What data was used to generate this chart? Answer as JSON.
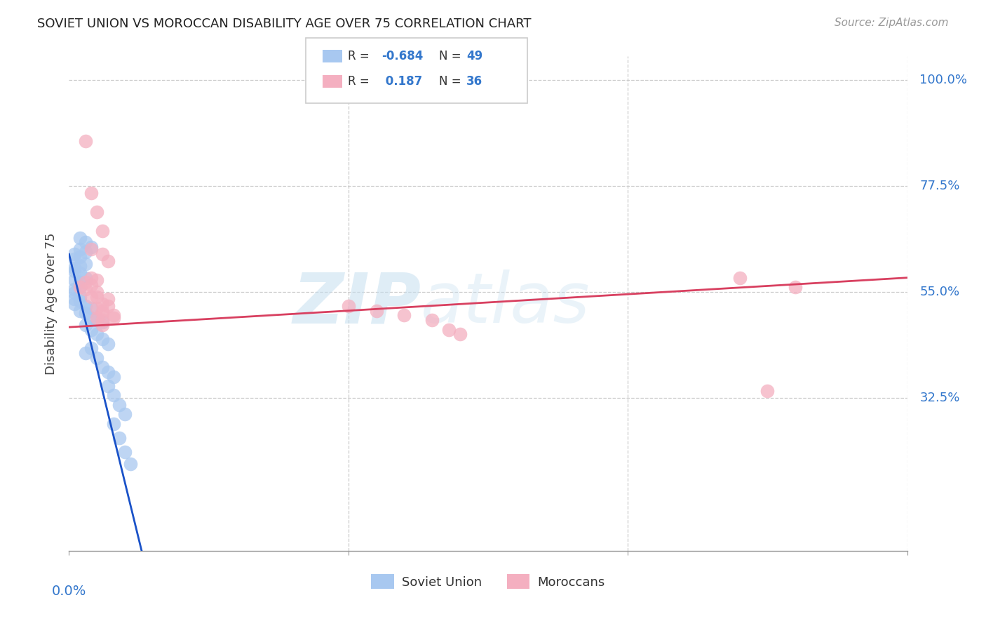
{
  "title": "SOVIET UNION VS MOROCCAN DISABILITY AGE OVER 75 CORRELATION CHART",
  "source": "Source: ZipAtlas.com",
  "ylabel": "Disability Age Over 75",
  "ytick_labels": [
    "100.0%",
    "77.5%",
    "55.0%",
    "32.5%"
  ],
  "ytick_values": [
    1.0,
    0.775,
    0.55,
    0.325
  ],
  "xlim": [
    0.0,
    0.15
  ],
  "ylim": [
    0.0,
    1.05
  ],
  "soviet_color": "#a8c8f0",
  "moroccan_color": "#f4afc0",
  "soviet_line_color": "#1a52c8",
  "moroccan_line_color": "#d84060",
  "watermark_zip": "ZIP",
  "watermark_atlas": "atlas",
  "soviet_R": "-0.684",
  "soviet_N": "49",
  "moroccan_R": "0.187",
  "moroccan_N": "36",
  "soviet_points_x": [
    0.002,
    0.003,
    0.004,
    0.002,
    0.003,
    0.001,
    0.002,
    0.001,
    0.003,
    0.002,
    0.001,
    0.001,
    0.002,
    0.003,
    0.001,
    0.002,
    0.002,
    0.001,
    0.001,
    0.002,
    0.001,
    0.002,
    0.001,
    0.003,
    0.004,
    0.002,
    0.003,
    0.004,
    0.005,
    0.006,
    0.003,
    0.004,
    0.005,
    0.006,
    0.007,
    0.004,
    0.003,
    0.005,
    0.006,
    0.007,
    0.008,
    0.007,
    0.008,
    0.009,
    0.01,
    0.008,
    0.009,
    0.01,
    0.011
  ],
  "soviet_points_y": [
    0.665,
    0.655,
    0.645,
    0.64,
    0.635,
    0.63,
    0.625,
    0.62,
    0.61,
    0.605,
    0.6,
    0.595,
    0.59,
    0.58,
    0.575,
    0.57,
    0.56,
    0.555,
    0.548,
    0.54,
    0.535,
    0.53,
    0.525,
    0.52,
    0.515,
    0.51,
    0.505,
    0.495,
    0.49,
    0.485,
    0.48,
    0.47,
    0.46,
    0.45,
    0.44,
    0.43,
    0.42,
    0.41,
    0.39,
    0.38,
    0.37,
    0.35,
    0.33,
    0.31,
    0.29,
    0.27,
    0.24,
    0.21,
    0.185
  ],
  "moroccan_points_x": [
    0.002,
    0.003,
    0.004,
    0.003,
    0.004,
    0.005,
    0.004,
    0.005,
    0.006,
    0.005,
    0.006,
    0.005,
    0.007,
    0.006,
    0.007,
    0.008,
    0.006,
    0.007,
    0.008,
    0.006,
    0.003,
    0.004,
    0.005,
    0.006,
    0.004,
    0.005,
    0.006,
    0.05,
    0.055,
    0.06,
    0.065,
    0.068,
    0.07,
    0.12,
    0.125,
    0.13
  ],
  "moroccan_points_y": [
    0.56,
    0.57,
    0.58,
    0.555,
    0.565,
    0.575,
    0.54,
    0.55,
    0.525,
    0.515,
    0.505,
    0.54,
    0.535,
    0.51,
    0.52,
    0.5,
    0.63,
    0.615,
    0.495,
    0.48,
    0.87,
    0.76,
    0.72,
    0.68,
    0.64,
    0.495,
    0.49,
    0.52,
    0.51,
    0.5,
    0.49,
    0.47,
    0.46,
    0.58,
    0.34,
    0.56
  ],
  "soviet_line_x0": 0.0,
  "soviet_line_y0": 0.63,
  "soviet_line_x1": 0.013,
  "soviet_line_y1": 0.0,
  "moroccan_line_x0": 0.0,
  "moroccan_line_y0": 0.475,
  "moroccan_line_x1": 0.15,
  "moroccan_line_y1": 0.58
}
